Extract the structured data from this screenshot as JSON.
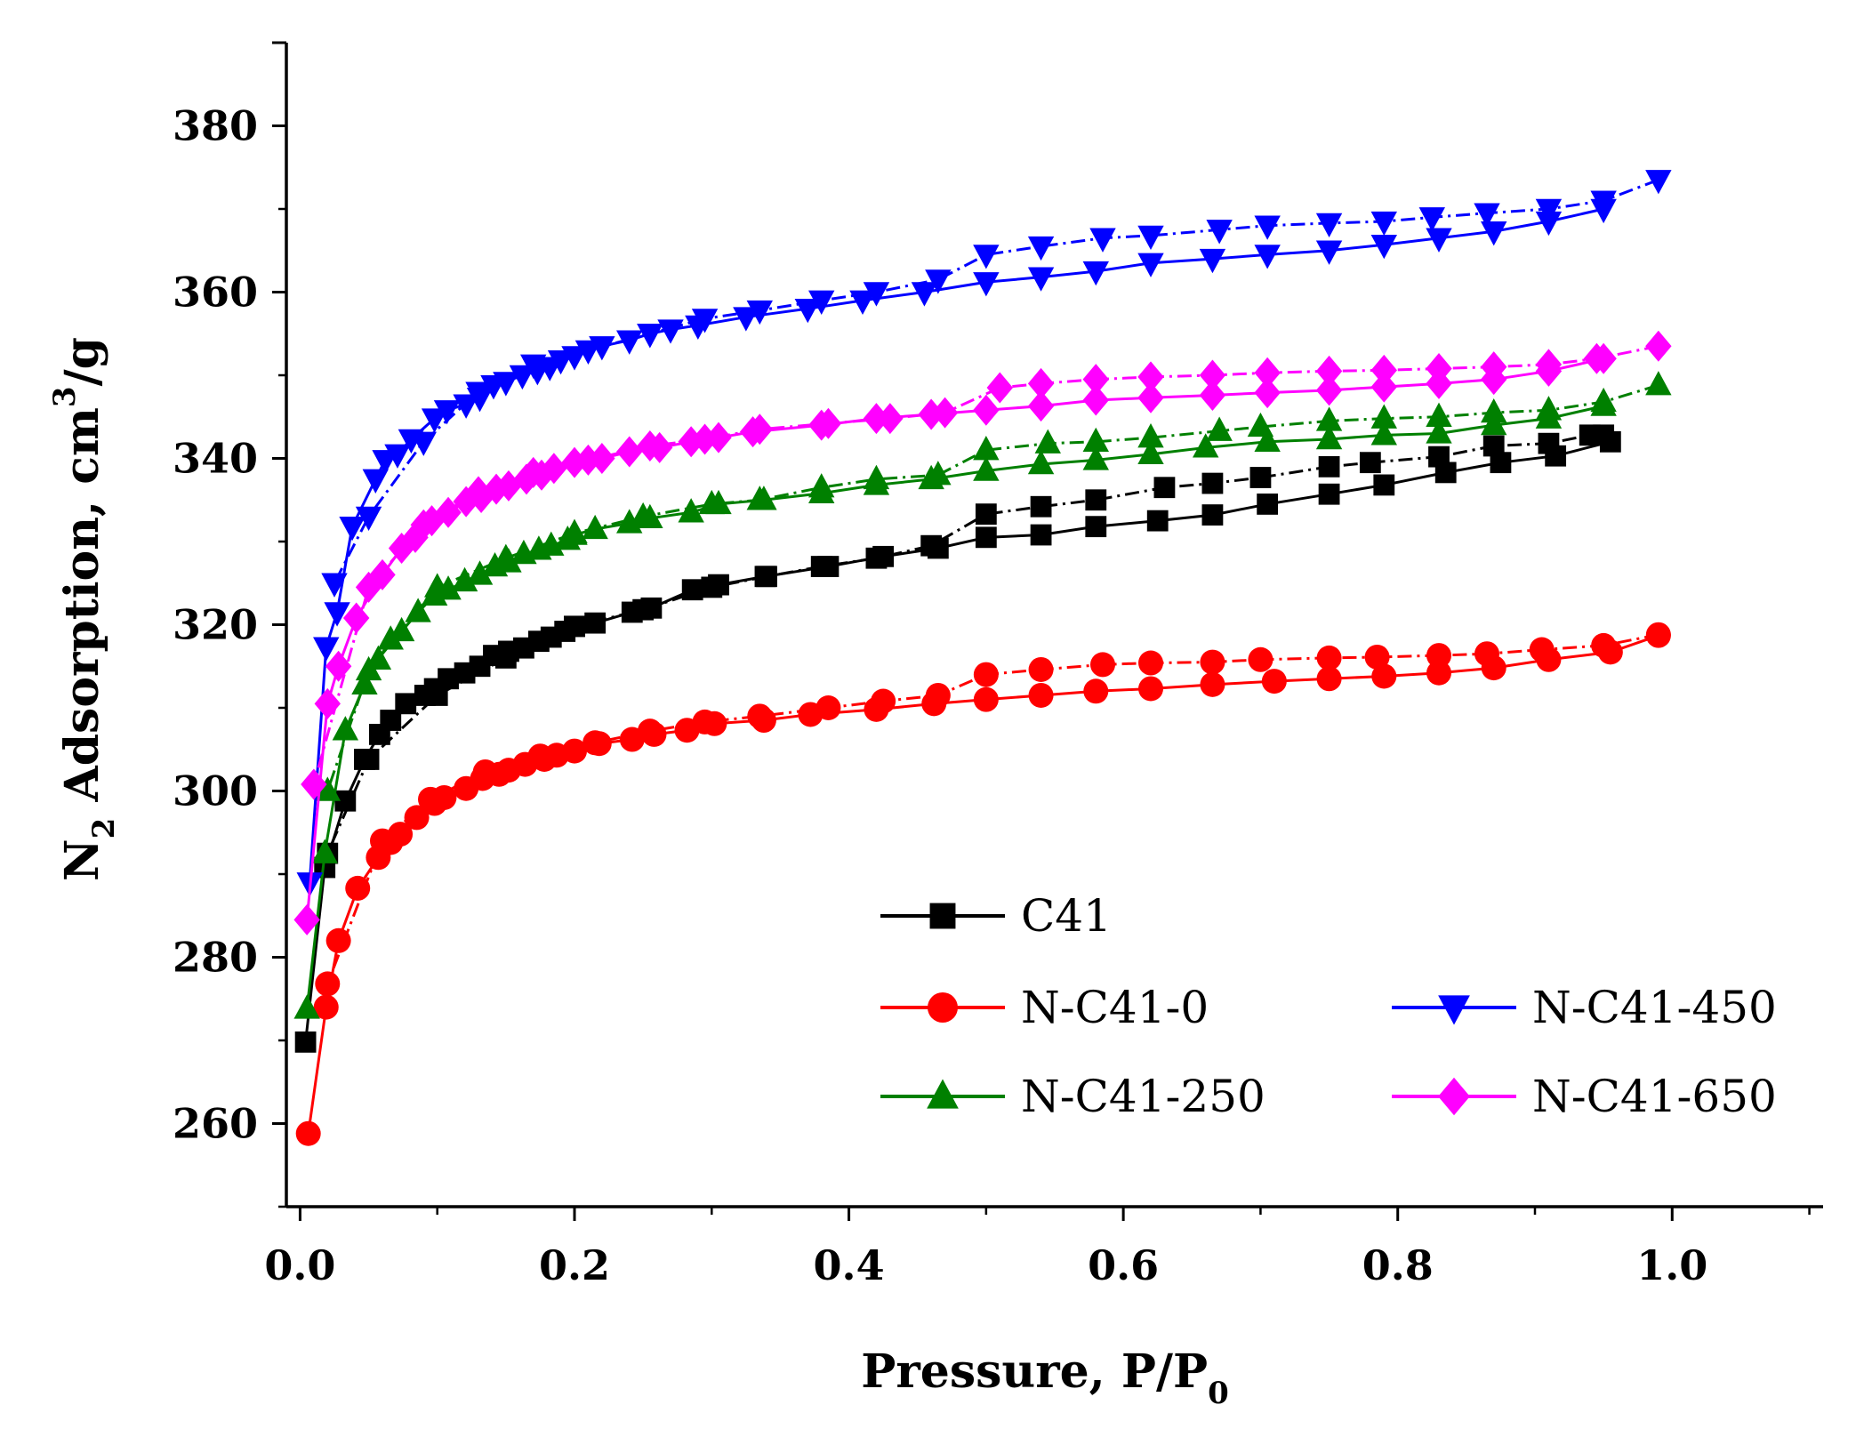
{
  "chart_data": {
    "type": "line",
    "title": "",
    "xlabel": "Pressure, P/P",
    "xlabel_sub": "0",
    "ylabel_parts": [
      "N",
      "2",
      " Adsorption, cm",
      "3",
      "/g"
    ],
    "xlim": [
      -0.01,
      1.11
    ],
    "ylim": [
      250,
      390
    ],
    "x_ticks": [
      0.0,
      0.2,
      0.4,
      0.6,
      0.8,
      1.0
    ],
    "x_tick_labels": [
      "0.0",
      "0.2",
      "0.4",
      "0.6",
      "0.8",
      "1.0"
    ],
    "y_ticks": [
      260,
      280,
      300,
      320,
      340,
      360,
      380
    ],
    "y_tick_labels": [
      "260",
      "280",
      "300",
      "320",
      "340",
      "360",
      "380"
    ],
    "legend_position": "bottom-right",
    "series": [
      {
        "name": "C41",
        "color": "#000000",
        "marker": "square",
        "adsorption": {
          "x": [
            0.004,
            0.018,
            0.033,
            0.047,
            0.058,
            0.066,
            0.077,
            0.091,
            0.098,
            0.108,
            0.12,
            0.131,
            0.141,
            0.152,
            0.163,
            0.174,
            0.183,
            0.193,
            0.2,
            0.215,
            0.242,
            0.256,
            0.286,
            0.305,
            0.339,
            0.385,
            0.425,
            0.465,
            0.5,
            0.54,
            0.58,
            0.625,
            0.665,
            0.705,
            0.75,
            0.79,
            0.835,
            0.875,
            0.915,
            0.955
          ],
          "y": [
            269.8,
            290.8,
            298.8,
            303.8,
            306.8,
            308.5,
            310.5,
            311.5,
            312.3,
            313.5,
            314.2,
            315,
            316.3,
            316.8,
            317.2,
            318,
            318.5,
            319.2,
            319.8,
            320.2,
            321.5,
            322,
            324.2,
            324.8,
            325.8,
            327,
            328.2,
            329.2,
            330.5,
            330.8,
            331.8,
            332.5,
            333.2,
            334.5,
            335.7,
            336.8,
            338.3,
            339.5,
            340.3,
            342
          ]
        },
        "desorption": {
          "x": [
            0.95,
            0.94,
            0.91,
            0.87,
            0.83,
            0.78,
            0.75,
            0.7,
            0.665,
            0.63,
            0.58,
            0.54,
            0.5,
            0.46,
            0.42,
            0.38,
            0.34,
            0.3,
            0.25,
            0.2,
            0.15,
            0.1,
            0.05,
            0.02
          ],
          "y": [
            342.8,
            342.8,
            341.8,
            341.5,
            340.2,
            339.5,
            339,
            337.7,
            337,
            336.5,
            335,
            334.2,
            333.3,
            329.5,
            328,
            327,
            325.8,
            324.5,
            321.8,
            319.8,
            316,
            311.5,
            303.8,
            292.5
          ]
        }
      },
      {
        "name": "N-C41-0",
        "color": "#ff0000",
        "marker": "circle",
        "adsorption": {
          "x": [
            0.006,
            0.019,
            0.028,
            0.042,
            0.057,
            0.066,
            0.073,
            0.085,
            0.098,
            0.105,
            0.121,
            0.133,
            0.145,
            0.152,
            0.164,
            0.178,
            0.187,
            0.2,
            0.218,
            0.242,
            0.258,
            0.282,
            0.302,
            0.338,
            0.372,
            0.42,
            0.462,
            0.5,
            0.54,
            0.58,
            0.62,
            0.665,
            0.71,
            0.75,
            0.79,
            0.83,
            0.87,
            0.91,
            0.955,
            0.99
          ],
          "y": [
            258.8,
            274,
            282,
            288.3,
            292,
            293.8,
            294.8,
            296.8,
            298.5,
            299.2,
            300.3,
            301.5,
            302,
            302.5,
            303.2,
            303.8,
            304.3,
            304.8,
            305.7,
            306.2,
            306.8,
            307.3,
            308.1,
            308.5,
            309.2,
            309.8,
            310.5,
            311,
            311.5,
            312,
            312.3,
            312.8,
            313.2,
            313.5,
            313.8,
            314.2,
            314.8,
            315.8,
            316.7,
            318.7
          ]
        },
        "desorption": {
          "x": [
            0.99,
            0.95,
            0.905,
            0.865,
            0.83,
            0.785,
            0.75,
            0.7,
            0.665,
            0.62,
            0.585,
            0.54,
            0.5,
            0.465,
            0.425,
            0.385,
            0.335,
            0.295,
            0.255,
            0.215,
            0.175,
            0.135,
            0.095,
            0.06,
            0.02
          ],
          "y": [
            318.8,
            317.5,
            317,
            316.5,
            316.3,
            316.1,
            316,
            315.8,
            315.5,
            315.4,
            315.2,
            314.6,
            314,
            311.5,
            310.8,
            310,
            309,
            308.3,
            307.2,
            305.8,
            304.2,
            302.3,
            299,
            294,
            276.8
          ]
        }
      },
      {
        "name": "N-C41-250",
        "color": "#008000",
        "marker": "triangle-up",
        "adsorption": {
          "x": [
            0.005,
            0.018,
            0.033,
            0.047,
            0.057,
            0.066,
            0.074,
            0.086,
            0.098,
            0.108,
            0.12,
            0.131,
            0.142,
            0.152,
            0.163,
            0.174,
            0.183,
            0.195,
            0.2,
            0.215,
            0.24,
            0.255,
            0.285,
            0.305,
            0.338,
            0.38,
            0.42,
            0.46,
            0.5,
            0.54,
            0.58,
            0.62,
            0.66,
            0.705,
            0.75,
            0.79,
            0.83,
            0.87,
            0.91,
            0.95
          ],
          "y": [
            273.8,
            292.5,
            307.3,
            312.8,
            315.8,
            318.2,
            319.2,
            321.5,
            323.5,
            324.2,
            325.2,
            326,
            327,
            327.5,
            328.5,
            329,
            329.5,
            330.2,
            330.8,
            331.5,
            332.2,
            332.8,
            333.5,
            334.5,
            335,
            335.8,
            336.8,
            337.5,
            338.5,
            339.3,
            339.8,
            340.5,
            341.3,
            342,
            342.3,
            342.8,
            343,
            344,
            344.8,
            346.3
          ]
        },
        "desorption": {
          "x": [
            0.99,
            0.95,
            0.91,
            0.87,
            0.83,
            0.79,
            0.75,
            0.7,
            0.67,
            0.62,
            0.58,
            0.545,
            0.5,
            0.465,
            0.42,
            0.38,
            0.335,
            0.3,
            0.25,
            0.2,
            0.15,
            0.1,
            0.05,
            0.02
          ],
          "y": [
            348.8,
            346.8,
            345.8,
            345.5,
            345,
            344.8,
            344.5,
            343.8,
            343.3,
            342.5,
            342,
            341.8,
            341,
            338,
            337.5,
            336.5,
            335,
            334.5,
            333,
            331,
            328,
            324.5,
            314.5,
            300
          ]
        }
      },
      {
        "name": "N-C41-450",
        "color": "#0000ff",
        "marker": "triangle-down",
        "adsorption": {
          "x": [
            0.007,
            0.019,
            0.027,
            0.038,
            0.055,
            0.062,
            0.071,
            0.081,
            0.098,
            0.107,
            0.121,
            0.131,
            0.141,
            0.15,
            0.162,
            0.173,
            0.182,
            0.19,
            0.2,
            0.22,
            0.24,
            0.255,
            0.27,
            0.29,
            0.325,
            0.37,
            0.41,
            0.455,
            0.5,
            0.54,
            0.58,
            0.62,
            0.665,
            0.705,
            0.75,
            0.79,
            0.83,
            0.87,
            0.91,
            0.95
          ],
          "y": [
            289,
            317.3,
            321.5,
            331.8,
            337.5,
            339.8,
            340.5,
            342.3,
            344.8,
            345.8,
            346.5,
            347.3,
            348.8,
            349.2,
            350,
            350.5,
            351,
            351.8,
            352.3,
            353.5,
            354.2,
            355,
            355.5,
            356,
            357,
            358,
            359,
            360,
            361.2,
            361.8,
            362.5,
            363.5,
            364,
            364.5,
            365,
            365.7,
            366.5,
            367.3,
            368.5,
            370
          ]
        },
        "desorption": {
          "x": [
            0.99,
            0.95,
            0.91,
            0.865,
            0.825,
            0.79,
            0.75,
            0.705,
            0.67,
            0.62,
            0.585,
            0.54,
            0.5,
            0.465,
            0.42,
            0.38,
            0.335,
            0.295,
            0.255,
            0.21,
            0.17,
            0.13,
            0.09,
            0.05,
            0.025
          ],
          "y": [
            373.5,
            371,
            370,
            369.5,
            369,
            368.5,
            368.3,
            368,
            367.5,
            366.8,
            366.5,
            365.5,
            364.5,
            361.5,
            360,
            359,
            357.8,
            356.8,
            355,
            353,
            351.3,
            348,
            342,
            333,
            325
          ]
        }
      },
      {
        "name": "N-C41-650",
        "color": "#ff00ff",
        "marker": "diamond",
        "adsorption": {
          "x": [
            0.005,
            0.02,
            0.028,
            0.041,
            0.06,
            0.074,
            0.084,
            0.096,
            0.108,
            0.121,
            0.132,
            0.143,
            0.152,
            0.165,
            0.176,
            0.185,
            0.2,
            0.22,
            0.24,
            0.262,
            0.285,
            0.305,
            0.33,
            0.38,
            0.42,
            0.46,
            0.5,
            0.54,
            0.58,
            0.62,
            0.665,
            0.705,
            0.75,
            0.79,
            0.83,
            0.87,
            0.91,
            0.95
          ],
          "y": [
            284.5,
            310.5,
            315,
            320.8,
            326,
            329.2,
            330.5,
            332.5,
            333.5,
            334.8,
            335.3,
            336.3,
            336.7,
            337.5,
            338,
            338.8,
            339.5,
            340,
            340.8,
            341.3,
            342,
            342.5,
            343.2,
            344,
            344.8,
            345.3,
            345.8,
            346.3,
            347,
            347.3,
            347.6,
            347.9,
            348.2,
            348.6,
            349,
            349.5,
            350.5,
            352
          ]
        },
        "desorption": {
          "x": [
            0.99,
            0.945,
            0.91,
            0.87,
            0.83,
            0.79,
            0.75,
            0.705,
            0.665,
            0.62,
            0.58,
            0.54,
            0.51,
            0.47,
            0.43,
            0.385,
            0.335,
            0.295,
            0.255,
            0.21,
            0.17,
            0.13,
            0.09,
            0.05,
            0.01
          ],
          "y": [
            353.5,
            352,
            351.3,
            351,
            350.8,
            350.6,
            350.5,
            350.3,
            350,
            349.8,
            349.5,
            349,
            348.5,
            345.5,
            344.8,
            344.2,
            343.5,
            342.3,
            341.5,
            339.8,
            338.3,
            336,
            332,
            324.5,
            300.8
          ]
        }
      }
    ]
  }
}
